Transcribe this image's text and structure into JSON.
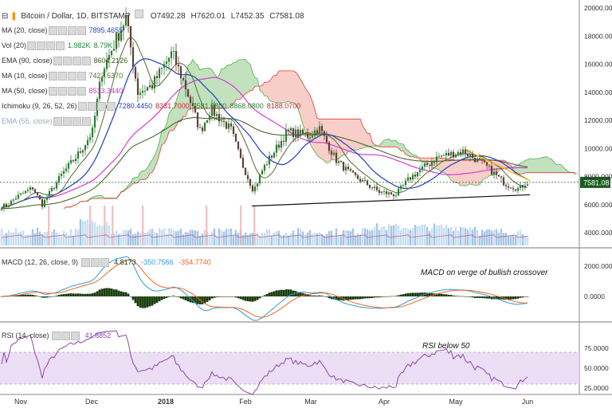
{
  "header": {
    "symbol": "Bitcoin / Dollar, 1D, BITSTAMP",
    "open": "O7492.28",
    "high": "H7620.01",
    "low": "L7452.35",
    "close": "C7581.08"
  },
  "indicators": [
    {
      "label": "MA (20, close)",
      "values": [
        "7895.4655"
      ],
      "color": "#1f3fbf"
    },
    {
      "label": "Vol (20)",
      "values": [
        "1.982K",
        "8.79K"
      ],
      "color": "#1a8a3a"
    },
    {
      "label": "EMA (90, close)",
      "values": [
        "8604.2126"
      ],
      "color": "#3d5a1f"
    },
    {
      "label": "MA (10, close)",
      "values": [
        "7427.5370"
      ],
      "color": "#556b2f"
    },
    {
      "label": "MA (50, close)",
      "values": [
        "8513.3440"
      ],
      "color": "#cc33cc"
    },
    {
      "label": "Ichimoku (9, 26, 52, 26)",
      "values": [
        "7280.4450",
        "8331.7000",
        "7581.0800",
        "8868.0800",
        "8188.0700"
      ],
      "color": "#1f3fbf"
    },
    {
      "label": "EMA (55, close)",
      "values": [],
      "color": "#9aa"
    }
  ],
  "macd": {
    "label": "MACD (12, 26, close, 9)",
    "values": [
      "4.8173",
      "-350.7566",
      "-354.7740"
    ]
  },
  "rsi": {
    "label": "RSI (14, close)",
    "value": "41.8852"
  },
  "annotations": {
    "macd": "MACD on verge of bullish crossover",
    "rsi": "RSI below 50"
  },
  "price_tag": "7581.08",
  "colors": {
    "up": "#2e7d32",
    "down": "#5d4037",
    "macd_hist": "#1b3d0f",
    "macd_line": "#3399dd",
    "signal_line": "#ee6622",
    "rsi": "#8e44ad",
    "cloud_green": "#a8d5a2",
    "cloud_red": "#f4b9b0",
    "price_tag": "#1b5e20"
  },
  "chart_data": {
    "type": "candlestick",
    "x_ticks": [
      "Nov",
      "Dec",
      "2018",
      "Feb",
      "Mar",
      "Apr",
      "May",
      "Jun"
    ],
    "price_axis_ticks": [
      20000,
      18000,
      16000,
      14000,
      12000,
      10000,
      8000,
      6000,
      4000
    ],
    "macd_axis_ticks": [
      "2000.0000",
      "0.0000"
    ],
    "rsi_axis_ticks": [
      "75.0000",
      "50.0000",
      "25.0000"
    ],
    "ylim": [
      2800,
      20600
    ],
    "close_path": [
      {
        "m": "Oct 20",
        "v": 5900
      },
      {
        "m": "Nov 1",
        "v": 6500
      },
      {
        "m": "Nov 8",
        "v": 7200
      },
      {
        "m": "Nov 12",
        "v": 6000
      },
      {
        "m": "Nov 20",
        "v": 8100
      },
      {
        "m": "Nov 28",
        "v": 9800
      },
      {
        "m": "Dec 3",
        "v": 11200
      },
      {
        "m": "Dec 7",
        "v": 15500
      },
      {
        "m": "Dec 17",
        "v": 19300
      },
      {
        "m": "Dec 22",
        "v": 14000
      },
      {
        "m": "Dec 28",
        "v": 14500
      },
      {
        "m": "Jan 5",
        "v": 16800
      },
      {
        "m": "Jan 10",
        "v": 14500
      },
      {
        "m": "Jan 16",
        "v": 11200
      },
      {
        "m": "Jan 20",
        "v": 12800
      },
      {
        "m": "Jan 28",
        "v": 11300
      },
      {
        "m": "Feb 1",
        "v": 9000
      },
      {
        "m": "Feb 6",
        "v": 7000
      },
      {
        "m": "Feb 10",
        "v": 8600
      },
      {
        "m": "Feb 20",
        "v": 11200
      },
      {
        "m": "Mar 1",
        "v": 10900
      },
      {
        "m": "Mar 5",
        "v": 11500
      },
      {
        "m": "Mar 12",
        "v": 9200
      },
      {
        "m": "Mar 18",
        "v": 8200
      },
      {
        "m": "Mar 30",
        "v": 6900
      },
      {
        "m": "Apr 6",
        "v": 6700
      },
      {
        "m": "Apr 12",
        "v": 7900
      },
      {
        "m": "Apr 24",
        "v": 9400
      },
      {
        "m": "May 5",
        "v": 9800
      },
      {
        "m": "May 15",
        "v": 8700
      },
      {
        "m": "May 23",
        "v": 7500
      },
      {
        "m": "May 29",
        "v": 7100
      },
      {
        "m": "Jun 1",
        "v": 7581
      }
    ]
  }
}
